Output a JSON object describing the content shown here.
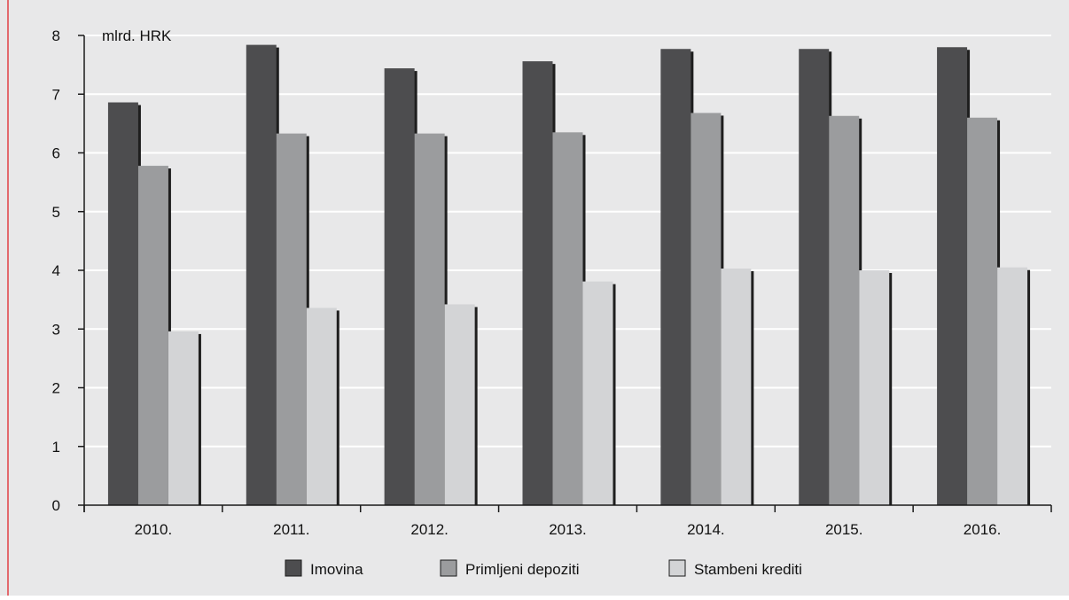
{
  "chart_data": {
    "type": "bar",
    "title": "",
    "xlabel": "",
    "ylabel": "",
    "unit_label": "mlrd. HRK",
    "ylim": [
      0,
      8
    ],
    "yticks": [
      0,
      1,
      2,
      3,
      4,
      5,
      6,
      7,
      8
    ],
    "grid": true,
    "legend_position": "bottom",
    "categories": [
      "2010.",
      "2011.",
      "2012.",
      "2013.",
      "2014.",
      "2015.",
      "2016."
    ],
    "series": [
      {
        "name": "Imovina",
        "color": "#4d4d4f",
        "values": [
          6.86,
          7.84,
          7.44,
          7.56,
          7.77,
          7.77,
          7.8
        ]
      },
      {
        "name": "Primljeni depoziti",
        "color": "#9b9c9e",
        "values": [
          5.78,
          6.33,
          6.33,
          6.35,
          6.68,
          6.63,
          6.6
        ]
      },
      {
        "name": "Stambeni krediti",
        "color": "#d3d4d6",
        "values": [
          2.96,
          3.36,
          3.42,
          3.81,
          4.03,
          4.0,
          4.05
        ]
      }
    ],
    "colors": {
      "background": "#e8e8e9",
      "gridline": "#ffffff",
      "axis": "#1a1a1a",
      "bar_shadow": "#1e1e1e",
      "accent_rule": "#e36a6e"
    }
  }
}
